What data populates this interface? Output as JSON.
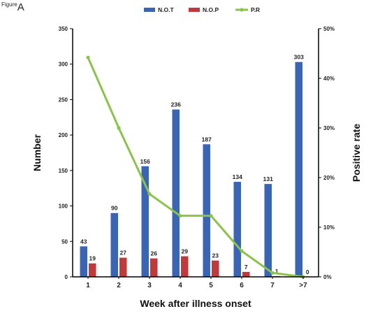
{
  "figure_label": {
    "prefix": "Figure",
    "letter": "A"
  },
  "chart_data": {
    "type": "bar",
    "categories": [
      "1",
      "2",
      "3",
      "4",
      "5",
      "6",
      "7",
      ">7"
    ],
    "series": [
      {
        "name": "N.O.T",
        "kind": "bar",
        "axis": "left",
        "color": "#3a64b4",
        "values": [
          43,
          90,
          156,
          236,
          187,
          134,
          131,
          303
        ]
      },
      {
        "name": "N.O.P",
        "kind": "bar",
        "axis": "left",
        "color": "#c0393b",
        "values": [
          19,
          27,
          26,
          29,
          23,
          7,
          1,
          0
        ]
      },
      {
        "name": "P.R",
        "kind": "line",
        "axis": "right",
        "color": "#8bc34a",
        "values": [
          44.2,
          30.0,
          16.7,
          12.3,
          12.3,
          5.2,
          0.8,
          0
        ]
      }
    ],
    "xlabel": "Week after illness onset",
    "ylabel": "Number",
    "y2label": "Positive rate",
    "ylim": [
      0,
      350
    ],
    "yticks": [
      0,
      50,
      100,
      150,
      200,
      250,
      300,
      350
    ],
    "y2lim": [
      0,
      50
    ],
    "y2ticks": [
      "0%",
      "10%",
      "20%",
      "30%",
      "40%",
      "50%"
    ],
    "grid": false,
    "legend": "top"
  }
}
